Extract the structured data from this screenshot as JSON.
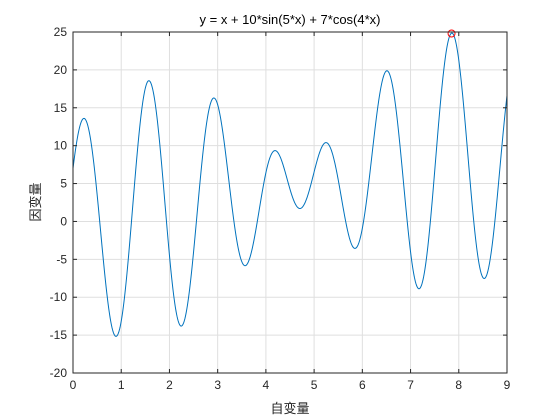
{
  "chart_data": {
    "type": "line",
    "title": "y = x + 10*sin(5*x) + 7*cos(4*x)",
    "xlabel": "自变量",
    "ylabel": "因变量",
    "xlim": [
      0,
      9
    ],
    "ylim": [
      -20,
      25
    ],
    "xticks": [
      0,
      1,
      2,
      3,
      4,
      5,
      6,
      7,
      8,
      9
    ],
    "yticks": [
      -20,
      -15,
      -10,
      -5,
      0,
      5,
      10,
      15,
      20,
      25
    ],
    "grid": true,
    "x_range": [
      0,
      9
    ],
    "x_step": 0.01,
    "series": [
      {
        "color": "#0072BD"
      }
    ],
    "marker": {
      "x": 7.85,
      "y": 24.8,
      "color": "#ff0000",
      "shape": "circle"
    }
  }
}
